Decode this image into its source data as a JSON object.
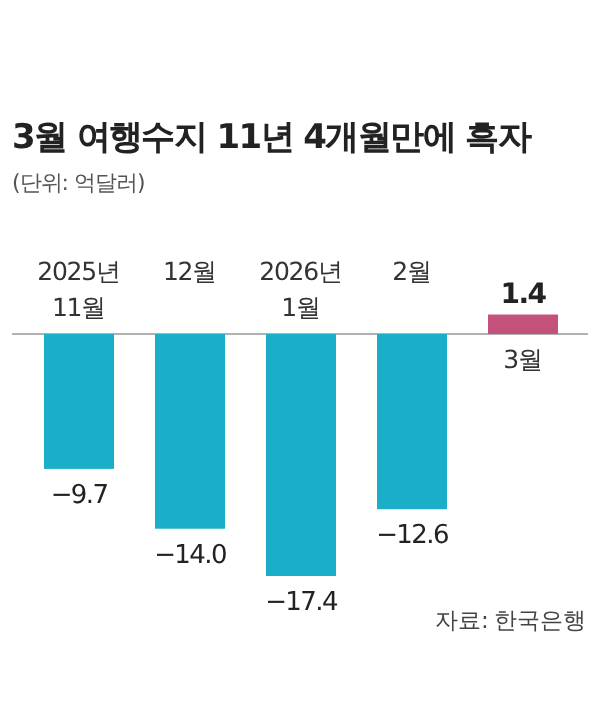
{
  "chart_data": {
    "type": "bar",
    "title": "3월 여행수지 11년 4개월만에 흑자",
    "subtitle": "(단위: 억달러)",
    "categories": [
      "2025년\n11월",
      "12월",
      "2026년\n1월",
      "2월",
      "3월"
    ],
    "values": [
      -9.7,
      -14.0,
      -17.4,
      -12.6,
      1.4
    ],
    "colors": [
      "#1aaec8",
      "#1aaec8",
      "#1aaec8",
      "#1aaec8",
      "#c4507c"
    ],
    "value_labels": [
      "−9.7",
      "−14.0",
      "−17.4",
      "−12.6",
      "1.4"
    ],
    "relative": false,
    "annotations": [
      "자료: 한국은행"
    ]
  }
}
